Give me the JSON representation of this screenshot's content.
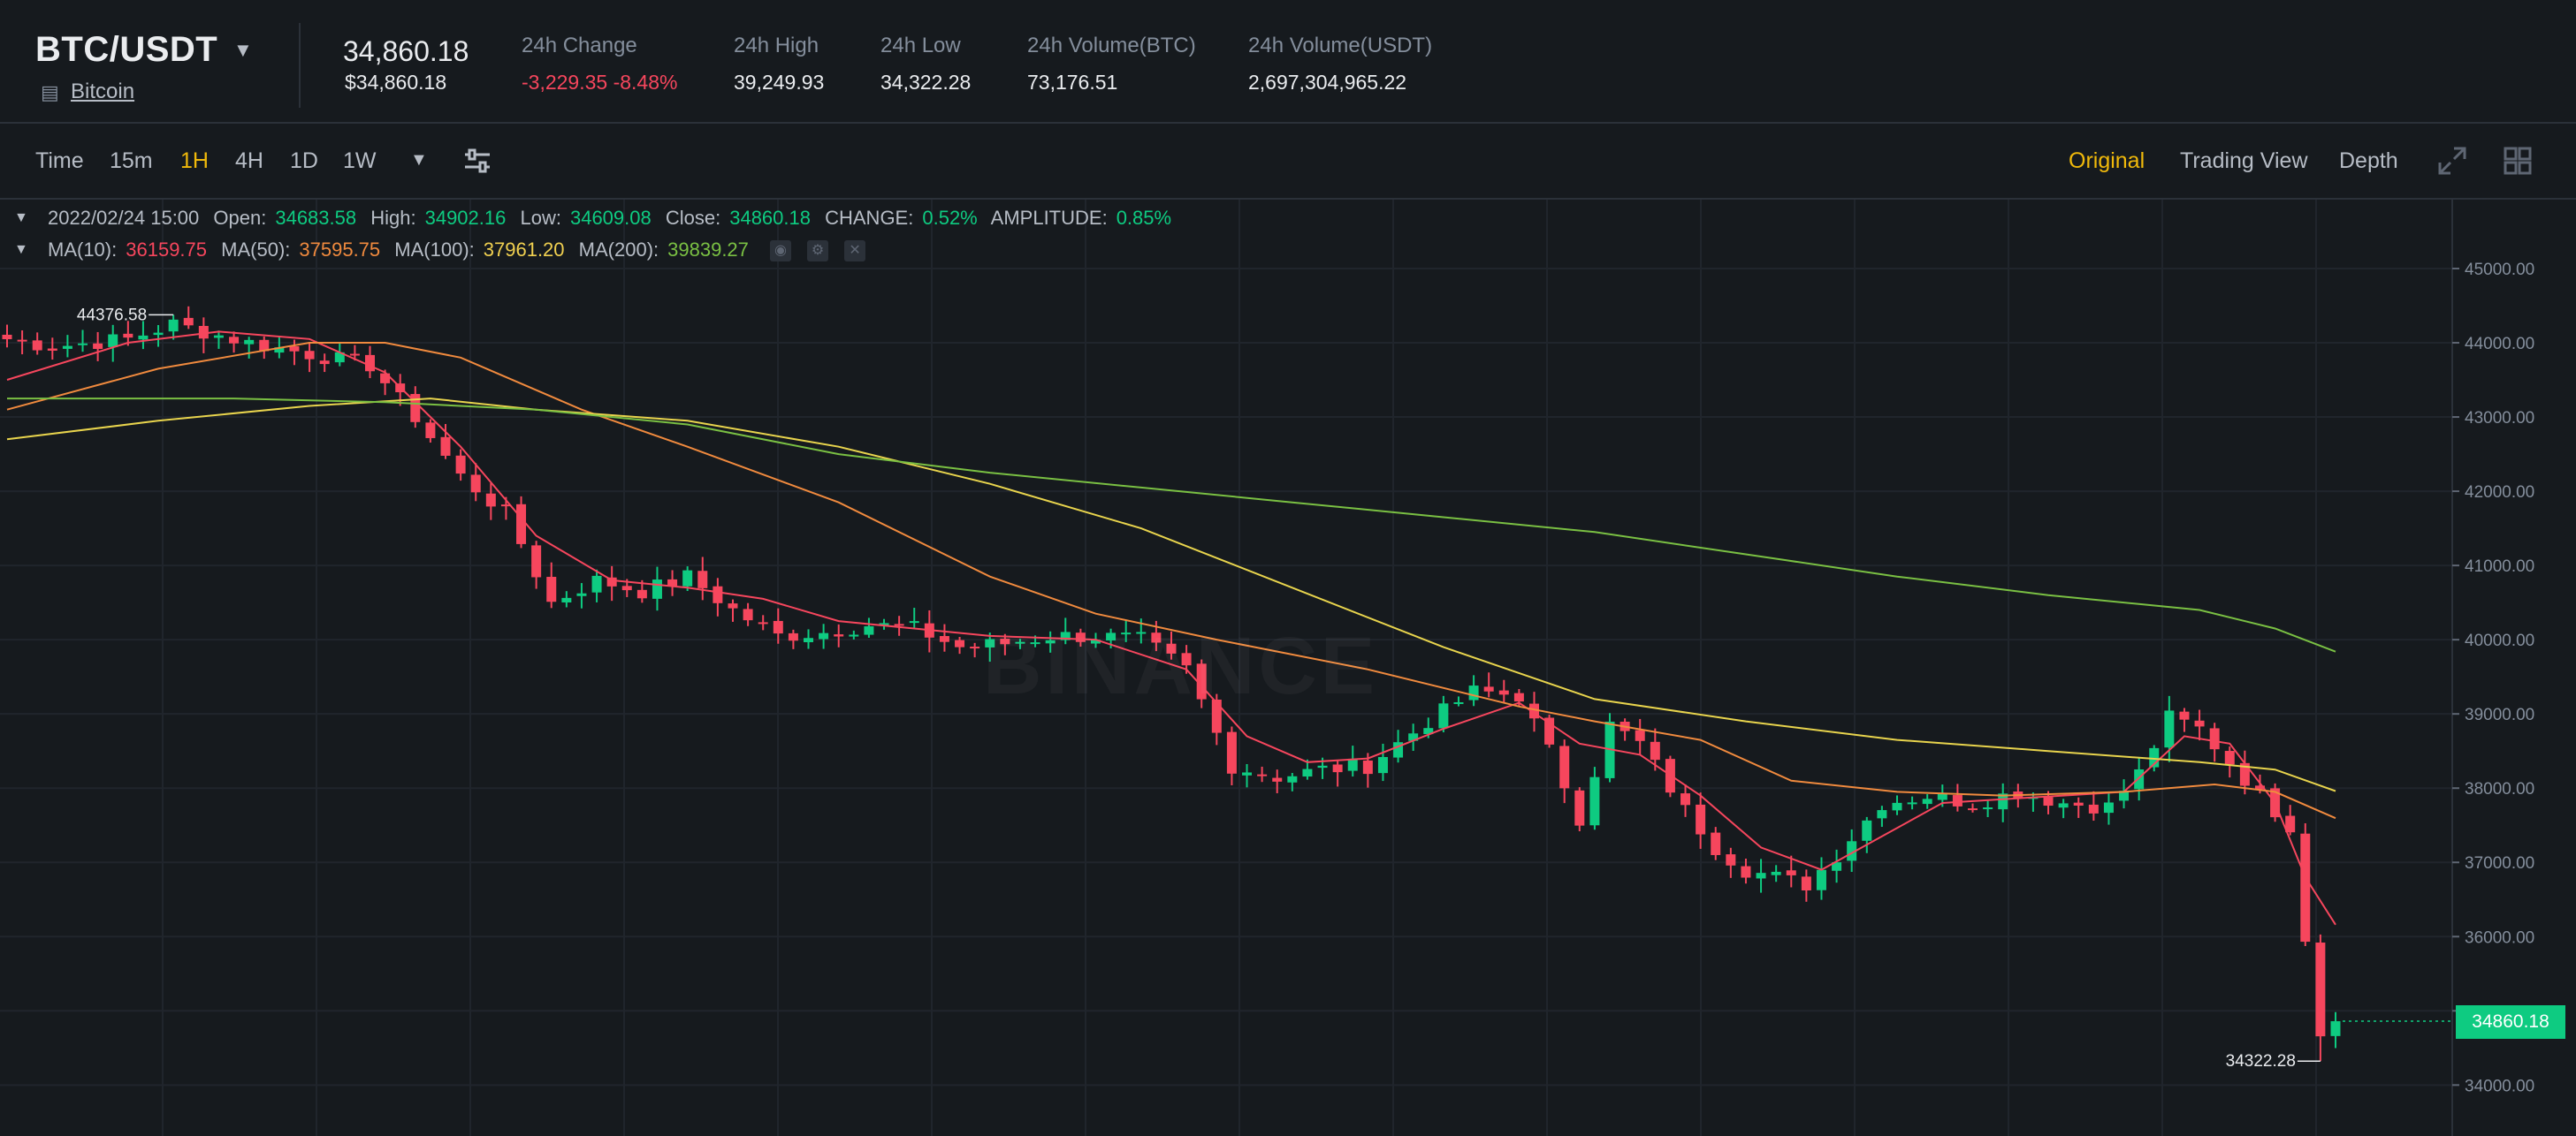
{
  "header": {
    "pair": "BTC/USDT",
    "coin_name": "Bitcoin",
    "last_price": "34,860.18",
    "last_price_usd": "$34,860.18",
    "stats": [
      {
        "label": "24h Change",
        "value": "-3,229.35 -8.48%",
        "tone": "red"
      },
      {
        "label": "24h High",
        "value": "39,249.93",
        "tone": "neutral"
      },
      {
        "label": "24h Low",
        "value": "34,322.28",
        "tone": "neutral"
      },
      {
        "label": "24h Volume(BTC)",
        "value": "73,176.51",
        "tone": "neutral"
      },
      {
        "label": "24h Volume(USDT)",
        "value": "2,697,304,965.22",
        "tone": "neutral"
      }
    ]
  },
  "toolbar": {
    "timeframes": [
      "Time",
      "15m",
      "1H",
      "4H",
      "1D",
      "1W"
    ],
    "active_timeframe": "1H",
    "views": [
      "Original",
      "Trading View",
      "Depth"
    ],
    "active_view": "Original"
  },
  "legend": {
    "datetime": "2022/02/24 15:00",
    "open_label": "Open:",
    "open": "34683.58",
    "high_label": "High:",
    "high": "34902.16",
    "low_label": "Low:",
    "low": "34609.08",
    "close_label": "Close:",
    "close": "34860.18",
    "change_label": "CHANGE:",
    "change": "0.52%",
    "amplitude_label": "AMPLITUDE:",
    "amplitude": "0.85%",
    "ma10_label": "MA(10):",
    "ma10": "36159.75",
    "ma50_label": "MA(50):",
    "ma50": "37595.75",
    "ma100_label": "MA(100):",
    "ma100": "37961.20",
    "ma200_label": "MA(200):",
    "ma200": "39839.27"
  },
  "watermark": "BINANCE",
  "current_price_tag": "34860.18",
  "colors": {
    "up": "#0ecb81",
    "down": "#f6465d",
    "ma10": "#f6465d",
    "ma50": "#f08a3e",
    "ma100": "#e8d44d",
    "ma200": "#7ac043",
    "accent": "#f0b90b",
    "background": "#161a1e"
  },
  "icons": {
    "coin": "bitcoin-icon",
    "dropdown": "chevron-down-icon",
    "settings": "settings-sliders-icon",
    "expand": "expand-icon",
    "grid": "grid-icon"
  },
  "chart_data": {
    "type": "candlestick",
    "interval": "1H",
    "ylim": [
      33700,
      45500
    ],
    "y_ticks": [
      34000,
      35000,
      36000,
      37000,
      38000,
      39000,
      40000,
      41000,
      42000,
      43000,
      44000,
      45000
    ],
    "y_tick_labels": [
      "34000.00",
      "35000.00",
      "36000.00",
      "37000.00",
      "38000.00",
      "39000.00",
      "40000.00",
      "41000.00",
      "42000.00",
      "43000.00",
      "44000.00",
      "45000.00"
    ],
    "annotations": [
      {
        "text": "44376.58",
        "candle_index": 11,
        "value": 44376.58,
        "kind": "max"
      },
      {
        "text": "34322.28",
        "candle_index": 153,
        "value": 34322.28,
        "kind": "min"
      }
    ],
    "close_anchors": [
      [
        0,
        44050
      ],
      [
        3,
        43950
      ],
      [
        8,
        44050
      ],
      [
        11,
        44250
      ],
      [
        16,
        44000
      ],
      [
        20,
        43850
      ],
      [
        24,
        43700
      ],
      [
        27,
        43000
      ],
      [
        30,
        42200
      ],
      [
        33,
        41700
      ],
      [
        36,
        40500
      ],
      [
        39,
        40800
      ],
      [
        42,
        40650
      ],
      [
        45,
        40850
      ],
      [
        48,
        40400
      ],
      [
        51,
        40050
      ],
      [
        54,
        40100
      ],
      [
        57,
        40200
      ],
      [
        60,
        40150
      ],
      [
        63,
        39900
      ],
      [
        66,
        39950
      ],
      [
        69,
        40050
      ],
      [
        72,
        40050
      ],
      [
        75,
        40000
      ],
      [
        78,
        39600
      ],
      [
        81,
        38300
      ],
      [
        84,
        38150
      ],
      [
        87,
        38250
      ],
      [
        90,
        38300
      ],
      [
        94,
        38900
      ],
      [
        97,
        39300
      ],
      [
        100,
        39250
      ],
      [
        102,
        38500
      ],
      [
        104,
        37600
      ],
      [
        106,
        38850
      ],
      [
        108,
        38600
      ],
      [
        111,
        37700
      ],
      [
        113,
        37200
      ],
      [
        115,
        36900
      ],
      [
        117,
        36800
      ],
      [
        119,
        36700
      ],
      [
        121,
        37100
      ],
      [
        124,
        37800
      ],
      [
        127,
        37900
      ],
      [
        130,
        37800
      ],
      [
        133,
        37950
      ],
      [
        136,
        37800
      ],
      [
        139,
        37750
      ],
      [
        141,
        38200
      ],
      [
        143,
        38950
      ],
      [
        145,
        38800
      ],
      [
        147,
        38350
      ],
      [
        149,
        37900
      ],
      [
        151,
        37500
      ],
      [
        152,
        36000
      ],
      [
        153,
        34700
      ],
      [
        154,
        34860.18
      ]
    ],
    "ma_series": [
      {
        "name": "MA(10)",
        "points": [
          [
            0,
            43500
          ],
          [
            8,
            44000
          ],
          [
            14,
            44150
          ],
          [
            20,
            44050
          ],
          [
            25,
            43600
          ],
          [
            30,
            42600
          ],
          [
            35,
            41400
          ],
          [
            40,
            40800
          ],
          [
            45,
            40700
          ],
          [
            50,
            40550
          ],
          [
            55,
            40250
          ],
          [
            60,
            40150
          ],
          [
            65,
            40050
          ],
          [
            72,
            40000
          ],
          [
            78,
            39600
          ],
          [
            82,
            38700
          ],
          [
            86,
            38350
          ],
          [
            90,
            38400
          ],
          [
            95,
            38800
          ],
          [
            100,
            39150
          ],
          [
            104,
            38600
          ],
          [
            108,
            38450
          ],
          [
            112,
            37900
          ],
          [
            116,
            37200
          ],
          [
            120,
            36900
          ],
          [
            124,
            37350
          ],
          [
            128,
            37800
          ],
          [
            132,
            37850
          ],
          [
            136,
            37900
          ],
          [
            140,
            37950
          ],
          [
            144,
            38700
          ],
          [
            147,
            38600
          ],
          [
            150,
            37800
          ],
          [
            152,
            36800
          ],
          [
            154,
            36159.75
          ]
        ]
      },
      {
        "name": "MA(50)",
        "points": [
          [
            0,
            43100
          ],
          [
            10,
            43650
          ],
          [
            20,
            44000
          ],
          [
            25,
            44000
          ],
          [
            30,
            43800
          ],
          [
            38,
            43100
          ],
          [
            45,
            42600
          ],
          [
            55,
            41850
          ],
          [
            65,
            40850
          ],
          [
            72,
            40350
          ],
          [
            80,
            40000
          ],
          [
            90,
            39600
          ],
          [
            100,
            39100
          ],
          [
            105,
            38900
          ],
          [
            112,
            38650
          ],
          [
            118,
            38100
          ],
          [
            125,
            37950
          ],
          [
            132,
            37900
          ],
          [
            140,
            37950
          ],
          [
            146,
            38050
          ],
          [
            150,
            37950
          ],
          [
            154,
            37595.75
          ]
        ]
      },
      {
        "name": "MA(100)",
        "points": [
          [
            0,
            42700
          ],
          [
            10,
            42950
          ],
          [
            20,
            43150
          ],
          [
            28,
            43250
          ],
          [
            35,
            43100
          ],
          [
            45,
            42950
          ],
          [
            55,
            42600
          ],
          [
            65,
            42100
          ],
          [
            75,
            41500
          ],
          [
            85,
            40700
          ],
          [
            95,
            39900
          ],
          [
            105,
            39200
          ],
          [
            115,
            38900
          ],
          [
            125,
            38650
          ],
          [
            135,
            38500
          ],
          [
            145,
            38350
          ],
          [
            150,
            38250
          ],
          [
            154,
            37961.2
          ]
        ]
      },
      {
        "name": "MA(200)",
        "points": [
          [
            0,
            43250
          ],
          [
            15,
            43250
          ],
          [
            25,
            43200
          ],
          [
            35,
            43100
          ],
          [
            45,
            42900
          ],
          [
            55,
            42500
          ],
          [
            65,
            42250
          ],
          [
            75,
            42050
          ],
          [
            85,
            41850
          ],
          [
            95,
            41650
          ],
          [
            105,
            41450
          ],
          [
            115,
            41150
          ],
          [
            125,
            40850
          ],
          [
            135,
            40600
          ],
          [
            145,
            40400
          ],
          [
            150,
            40150
          ],
          [
            154,
            39839.27
          ]
        ]
      }
    ]
  }
}
